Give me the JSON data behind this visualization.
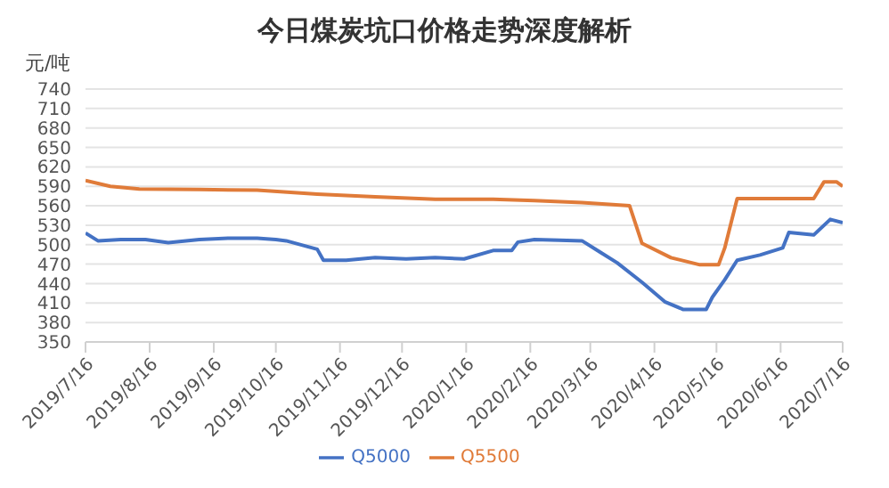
{
  "chart_data": {
    "type": "line",
    "title": "今日煤炭坑口价格走势深度解析",
    "ylabel": "元/吨",
    "xlim": [
      "2019-07-16",
      "2020-07-16"
    ],
    "xticks": [
      {
        "value": "2019-07-16",
        "label": "2019/7/16"
      },
      {
        "value": "2019-08-16",
        "label": "2019/8/16"
      },
      {
        "value": "2019-09-16",
        "label": "2019/9/16"
      },
      {
        "value": "2019-10-16",
        "label": "2019/10/16"
      },
      {
        "value": "2019-11-16",
        "label": "2019/11/16"
      },
      {
        "value": "2019-12-16",
        "label": "2019/12/16"
      },
      {
        "value": "2020-01-16",
        "label": "2020/1/16"
      },
      {
        "value": "2020-02-16",
        "label": "2020/2/16"
      },
      {
        "value": "2020-03-16",
        "label": "2020/3/16"
      },
      {
        "value": "2020-04-16",
        "label": "2020/4/16"
      },
      {
        "value": "2020-05-16",
        "label": "2020/5/16"
      },
      {
        "value": "2020-06-16",
        "label": "2020/6/16"
      },
      {
        "value": "2020-07-16",
        "label": "2020/7/16"
      }
    ],
    "ylim": [
      350,
      740
    ],
    "yticks": [
      350,
      380,
      410,
      440,
      470,
      500,
      530,
      560,
      590,
      620,
      650,
      680,
      710,
      740
    ],
    "grid": "y",
    "legend": "bottom",
    "marker": "none",
    "line_style": "solid",
    "series": [
      {
        "name": "Q5000",
        "color": "#4472c4",
        "x": [
          "2019-07-16",
          "2019-07-22",
          "2019-08-02",
          "2019-08-14",
          "2019-08-25",
          "2019-09-09",
          "2019-09-23",
          "2019-10-07",
          "2019-10-16",
          "2019-10-21",
          "2019-11-05",
          "2019-11-08",
          "2019-11-19",
          "2019-12-03",
          "2019-12-18",
          "2020-01-01",
          "2020-01-15",
          "2020-01-29",
          "2020-02-07",
          "2020-02-10",
          "2020-02-18",
          "2020-03-01",
          "2020-03-12",
          "2020-03-21",
          "2020-03-29",
          "2020-04-10",
          "2020-04-21",
          "2020-04-30",
          "2020-05-11",
          "2020-05-14",
          "2020-05-20",
          "2020-05-26",
          "2020-06-06",
          "2020-06-17",
          "2020-06-20",
          "2020-07-02",
          "2020-07-10",
          "2020-07-16"
        ],
        "values": [
          518,
          506,
          508,
          508,
          503,
          508,
          510,
          510,
          508,
          506,
          493,
          476,
          476,
          480,
          478,
          480,
          478,
          491,
          491,
          504,
          508,
          507,
          506,
          488,
          472,
          442,
          412,
          400,
          400,
          419,
          446,
          476,
          484,
          495,
          519,
          515,
          539,
          534
        ]
      },
      {
        "name": "Q5500",
        "color": "#e07b39",
        "x": [
          "2019-07-16",
          "2019-07-28",
          "2019-08-11",
          "2019-09-09",
          "2019-10-07",
          "2019-11-05",
          "2019-12-03",
          "2020-01-01",
          "2020-01-29",
          "2020-02-18",
          "2020-03-12",
          "2020-04-04",
          "2020-04-10",
          "2020-04-24",
          "2020-05-08",
          "2020-05-17",
          "2020-05-20",
          "2020-05-26",
          "2020-07-02",
          "2020-07-07",
          "2020-07-13",
          "2020-07-16"
        ],
        "values": [
          599,
          590,
          586,
          585,
          584,
          578,
          574,
          570,
          570,
          568,
          565,
          560,
          502,
          480,
          469,
          469,
          495,
          571,
          571,
          597,
          597,
          590
        ]
      }
    ]
  }
}
